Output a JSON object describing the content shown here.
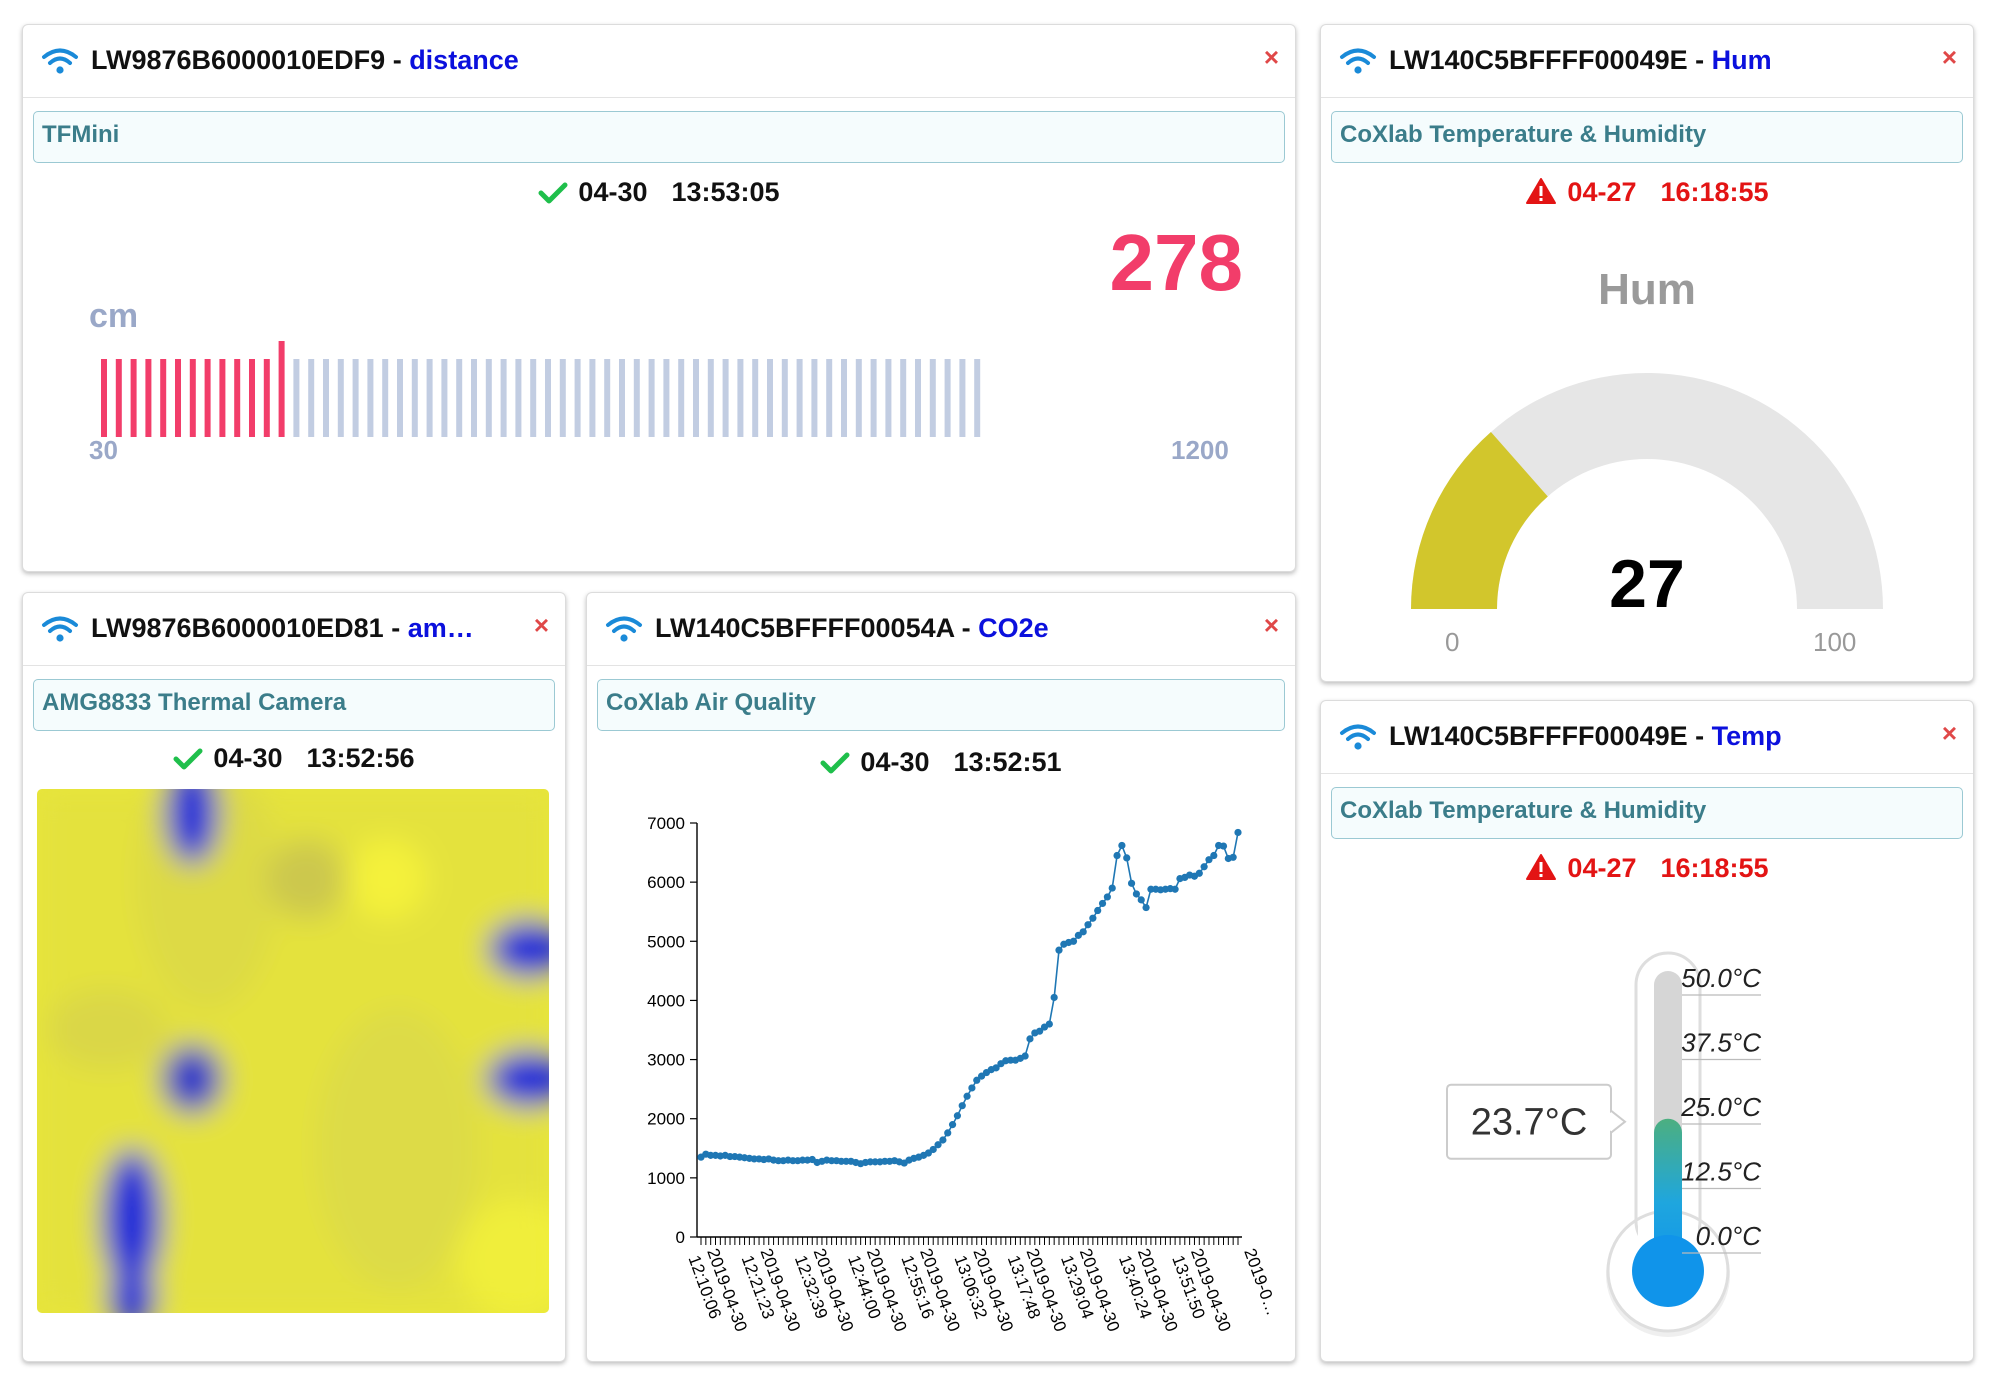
{
  "colors": {
    "accent_red": "#f23d6a",
    "bar_gray": "#c2cde2",
    "gauge_fill": "#d2c62c",
    "metric_blue": "#0b10dd",
    "ok_green": "#1fbf4b",
    "err_red": "#e31414"
  },
  "panels": {
    "distance": {
      "device": "LW9876B6000010EDF9",
      "sep": " - ",
      "metric": "distance",
      "close": "×",
      "description": "TFMini",
      "date": "04-30",
      "time": "13:53:05",
      "value": "278",
      "unit": "cm",
      "min": "30",
      "max": "1200",
      "level": {
        "value": 278,
        "min": 30,
        "max": 1200,
        "bars": 60
      }
    },
    "amg": {
      "device": "LW9876B6000010ED81",
      "sep": " - ",
      "metric": "am…",
      "close": "×",
      "description": "AMG8833 Thermal Camera",
      "date": "04-30",
      "time": "13:52:56",
      "heatmap_icon": "thermal-camera-image"
    },
    "co2": {
      "device": "LW140C5BFFFF00054A",
      "sep": " - ",
      "metric": "CO2e",
      "close": "×",
      "description": "CoXlab Air Quality",
      "date": "04-30",
      "time": "13:52:51"
    },
    "hum": {
      "device": "LW140C5BFFFF00049E",
      "sep": " - ",
      "metric": "Hum",
      "close": "×",
      "description": "CoXlab Temperature & Humidity",
      "date": "04-27",
      "time": "16:18:55",
      "gauge_title": "Hum",
      "value": "27",
      "min": "0",
      "max": "100",
      "level": {
        "value": 27,
        "min": 0,
        "max": 100
      }
    },
    "temp": {
      "device": "LW140C5BFFFF00049E",
      "sep": " - ",
      "metric": "Temp",
      "close": "×",
      "description": "CoXlab Temperature & Humidity",
      "date": "04-27",
      "time": "16:18:55",
      "readout": "23.7°C",
      "scale_labels": [
        "50.0°C",
        "37.5°C",
        "25.0°C",
        "12.5°C",
        "0.0°C"
      ],
      "level": {
        "value": 23.7,
        "min": 0,
        "max": 50
      }
    }
  },
  "chart_data": {
    "type": "line",
    "title": "",
    "xlabel": "",
    "ylabel": "",
    "ylim": [
      0,
      7000
    ],
    "yticks": [
      "0",
      "1000",
      "2000",
      "3000",
      "4000",
      "5000",
      "6000",
      "7000"
    ],
    "xticks": [
      "2019-04-30 12:10:06",
      "2019-04-30 12:21:23",
      "2019-04-30 12:32:39",
      "2019-04-30 12:44:00",
      "2019-04-30 12:55:16",
      "2019-04-30 13:06:32",
      "2019-04-30 13:17:48",
      "2019-04-30 13:29:04",
      "2019-04-30 13:40:24",
      "2019-04-30 13:51:50",
      "2019-0…"
    ],
    "series": [
      {
        "name": "",
        "values": [
          1350,
          1400,
          1380,
          1380,
          1370,
          1380,
          1360,
          1360,
          1350,
          1340,
          1330,
          1320,
          1320,
          1310,
          1320,
          1300,
          1290,
          1290,
          1300,
          1290,
          1290,
          1300,
          1300,
          1310,
          1260,
          1280,
          1300,
          1290,
          1290,
          1280,
          1280,
          1280,
          1260,
          1240,
          1260,
          1270,
          1270,
          1270,
          1280,
          1280,
          1290,
          1270,
          1250,
          1300,
          1330,
          1350,
          1380,
          1420,
          1480,
          1560,
          1640,
          1760,
          1900,
          2050,
          2220,
          2380,
          2520,
          2650,
          2720,
          2780,
          2830,
          2860,
          2930,
          2980,
          2990,
          2990,
          3020,
          3060,
          3350,
          3450,
          3480,
          3550,
          3600,
          4050,
          4850,
          4950,
          4980,
          5000,
          5100,
          5160,
          5280,
          5390,
          5520,
          5640,
          5750,
          5900,
          6450,
          6620,
          6410,
          5980,
          5800,
          5700,
          5570,
          5880,
          5880,
          5870,
          5880,
          5890,
          5880,
          6060,
          6080,
          6120,
          6100,
          6150,
          6260,
          6380,
          6450,
          6620,
          6610,
          6400,
          6420,
          6840
        ]
      }
    ]
  }
}
